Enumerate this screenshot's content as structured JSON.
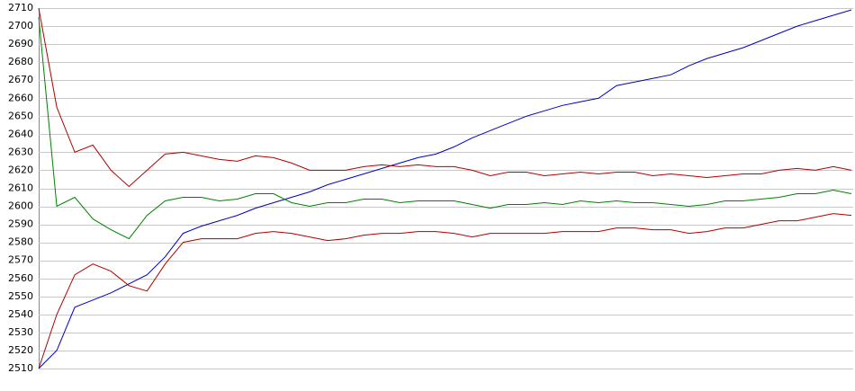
{
  "chart_data": {
    "type": "line",
    "ylim": [
      2510,
      2710
    ],
    "yticks": [
      2510,
      2520,
      2530,
      2540,
      2550,
      2560,
      2570,
      2580,
      2590,
      2600,
      2610,
      2620,
      2630,
      2640,
      2650,
      2660,
      2670,
      2680,
      2690,
      2700,
      2710
    ],
    "grid": true,
    "series": [
      {
        "color": "#0000c0",
        "values": [
          2510,
          2520,
          2544,
          2548,
          2552,
          2557,
          2562,
          2572,
          2585,
          2589,
          2592,
          2595,
          2599,
          2602,
          2605,
          2608,
          2612,
          2615,
          2618,
          2621,
          2624,
          2627,
          2629,
          2633,
          2638,
          2642,
          2646,
          2650,
          2653,
          2656,
          2658,
          2660,
          2667,
          2669,
          2671,
          2673,
          2678,
          2682,
          2685,
          2688,
          2692,
          2696,
          2700,
          2703,
          2706,
          2709
        ]
      },
      {
        "color": "#b00000",
        "values": [
          2710,
          2655,
          2630,
          2634,
          2620,
          2611,
          2620,
          2629,
          2630,
          2628,
          2626,
          2625,
          2628,
          2627,
          2624,
          2620,
          2620,
          2620,
          2622,
          2623,
          2622,
          2623,
          2622,
          2622,
          2620,
          2617,
          2619,
          2619,
          2617,
          2618,
          2619,
          2618,
          2619,
          2619,
          2617,
          2618,
          2617,
          2616,
          2617,
          2618,
          2618,
          2620,
          2621,
          2620,
          2622,
          2620
        ]
      },
      {
        "color": "#008000",
        "values": [
          2705,
          2600,
          2605,
          2593,
          2587,
          2582,
          2595,
          2603,
          2605,
          2605,
          2603,
          2604,
          2607,
          2607,
          2602,
          2600,
          2602,
          2602,
          2604,
          2604,
          2602,
          2603,
          2603,
          2603,
          2601,
          2599,
          2601,
          2601,
          2602,
          2601,
          2603,
          2602,
          2603,
          2602,
          2602,
          2601,
          2600,
          2601,
          2603,
          2603,
          2604,
          2605,
          2607,
          2607,
          2609,
          2607
        ]
      },
      {
        "color": "#b00000",
        "values": [
          2510,
          2540,
          2562,
          2568,
          2564,
          2556,
          2553,
          2568,
          2580,
          2582,
          2582,
          2582,
          2585,
          2586,
          2585,
          2583,
          2581,
          2582,
          2584,
          2585,
          2585,
          2586,
          2586,
          2585,
          2583,
          2585,
          2585,
          2585,
          2585,
          2586,
          2586,
          2586,
          2588,
          2588,
          2587,
          2587,
          2585,
          2586,
          2588,
          2588,
          2590,
          2592,
          2592,
          2594,
          2596,
          2595
        ]
      }
    ]
  }
}
